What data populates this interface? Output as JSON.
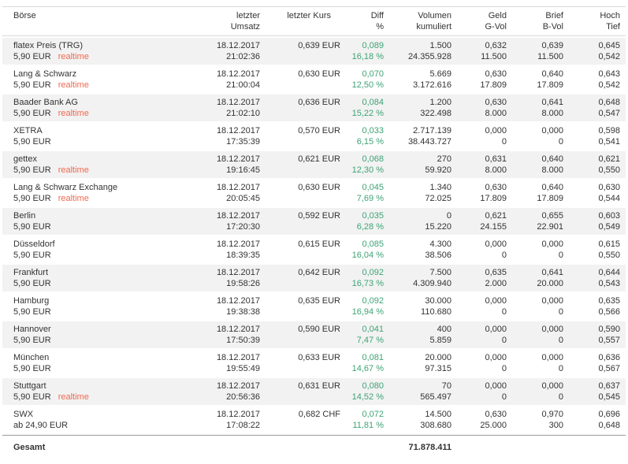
{
  "colors": {
    "diff_green": "#3ea376",
    "realtime_orange": "#ee6a50",
    "row_alt_bg": "#f2f2f2"
  },
  "table": {
    "columns": [
      {
        "l1": "Börse",
        "l2": ""
      },
      {
        "l1": "letzter",
        "l2": "Umsatz"
      },
      {
        "l1": "letzter Kurs",
        "l2": ""
      },
      {
        "l1": "Diff",
        "l2": "%"
      },
      {
        "l1": "Volumen",
        "l2": "kumuliert"
      },
      {
        "l1": "Geld",
        "l2": "G-Vol"
      },
      {
        "l1": "Brief",
        "l2": "B-Vol"
      },
      {
        "l1": "Hoch",
        "l2": "Tief"
      }
    ],
    "rows": [
      {
        "name": "flatex Preis (TRG)",
        "price_note": "5,90 EUR",
        "realtime": "realtime",
        "date": "18.12.2017",
        "time": "21:02:36",
        "kurs": "0,639 EUR",
        "diff": "0,089",
        "diff_pct": "16,18 %",
        "vol": "1.500",
        "vol_kum": "24.355.928",
        "geld": "0,632",
        "g_vol": "11.500",
        "brief": "0,639",
        "b_vol": "11.500",
        "hoch": "0,645",
        "tief": "0,542"
      },
      {
        "name": "Lang & Schwarz",
        "price_note": "5,90 EUR",
        "realtime": "realtime",
        "date": "18.12.2017",
        "time": "21:00:04",
        "kurs": "0,630 EUR",
        "diff": "0,070",
        "diff_pct": "12,50 %",
        "vol": "5.669",
        "vol_kum": "3.172.616",
        "geld": "0,630",
        "g_vol": "17.809",
        "brief": "0,640",
        "b_vol": "17.809",
        "hoch": "0,643",
        "tief": "0,542"
      },
      {
        "name": "Baader Bank AG",
        "price_note": "5,90 EUR",
        "realtime": "realtime",
        "date": "18.12.2017",
        "time": "21:02:10",
        "kurs": "0,636 EUR",
        "diff": "0,084",
        "diff_pct": "15,22 %",
        "vol": "1.200",
        "vol_kum": "322.498",
        "geld": "0,630",
        "g_vol": "8.000",
        "brief": "0,641",
        "b_vol": "8.000",
        "hoch": "0,648",
        "tief": "0,547"
      },
      {
        "name": "XETRA",
        "price_note": "5,90 EUR",
        "realtime": "",
        "date": "18.12.2017",
        "time": "17:35:39",
        "kurs": "0,570 EUR",
        "diff": "0,033",
        "diff_pct": "6,15 %",
        "vol": "2.717.139",
        "vol_kum": "38.443.727",
        "geld": "0,000",
        "g_vol": "0",
        "brief": "0,000",
        "b_vol": "0",
        "hoch": "0,598",
        "tief": "0,541"
      },
      {
        "name": "gettex",
        "price_note": "5,90 EUR",
        "realtime": "realtime",
        "date": "18.12.2017",
        "time": "19:16:45",
        "kurs": "0,621 EUR",
        "diff": "0,068",
        "diff_pct": "12,30 %",
        "vol": "270",
        "vol_kum": "59.920",
        "geld": "0,631",
        "g_vol": "8.000",
        "brief": "0,640",
        "b_vol": "8.000",
        "hoch": "0,621",
        "tief": "0,550"
      },
      {
        "name": "Lang & Schwarz Exchange",
        "price_note": "5,90 EUR",
        "realtime": "realtime",
        "date": "18.12.2017",
        "time": "20:05:45",
        "kurs": "0,630 EUR",
        "diff": "0,045",
        "diff_pct": "7,69 %",
        "vol": "1.340",
        "vol_kum": "72.025",
        "geld": "0,630",
        "g_vol": "17.809",
        "brief": "0,640",
        "b_vol": "17.809",
        "hoch": "0,630",
        "tief": "0,544"
      },
      {
        "name": "Berlin",
        "price_note": "5,90 EUR",
        "realtime": "",
        "date": "18.12.2017",
        "time": "17:20:30",
        "kurs": "0,592 EUR",
        "diff": "0,035",
        "diff_pct": "6,28 %",
        "vol": "0",
        "vol_kum": "15.220",
        "geld": "0,621",
        "g_vol": "24.155",
        "brief": "0,655",
        "b_vol": "22.901",
        "hoch": "0,603",
        "tief": "0,549"
      },
      {
        "name": "Düsseldorf",
        "price_note": "5,90 EUR",
        "realtime": "",
        "date": "18.12.2017",
        "time": "18:39:35",
        "kurs": "0,615 EUR",
        "diff": "0,085",
        "diff_pct": "16,04 %",
        "vol": "4.300",
        "vol_kum": "38.506",
        "geld": "0,000",
        "g_vol": "0",
        "brief": "0,000",
        "b_vol": "0",
        "hoch": "0,615",
        "tief": "0,550"
      },
      {
        "name": "Frankfurt",
        "price_note": "5,90 EUR",
        "realtime": "",
        "date": "18.12.2017",
        "time": "19:58:26",
        "kurs": "0,642 EUR",
        "diff": "0,092",
        "diff_pct": "16,73 %",
        "vol": "7.500",
        "vol_kum": "4.309.940",
        "geld": "0,635",
        "g_vol": "2.000",
        "brief": "0,641",
        "b_vol": "20.000",
        "hoch": "0,644",
        "tief": "0,543"
      },
      {
        "name": "Hamburg",
        "price_note": "5,90 EUR",
        "realtime": "",
        "date": "18.12.2017",
        "time": "19:38:38",
        "kurs": "0,635 EUR",
        "diff": "0,092",
        "diff_pct": "16,94 %",
        "vol": "30.000",
        "vol_kum": "110.680",
        "geld": "0,000",
        "g_vol": "0",
        "brief": "0,000",
        "b_vol": "0",
        "hoch": "0,635",
        "tief": "0,566"
      },
      {
        "name": "Hannover",
        "price_note": "5,90 EUR",
        "realtime": "",
        "date": "18.12.2017",
        "time": "17:50:39",
        "kurs": "0,590 EUR",
        "diff": "0,041",
        "diff_pct": "7,47 %",
        "vol": "400",
        "vol_kum": "5.859",
        "geld": "0,000",
        "g_vol": "0",
        "brief": "0,000",
        "b_vol": "0",
        "hoch": "0,590",
        "tief": "0,557"
      },
      {
        "name": "München",
        "price_note": "5,90 EUR",
        "realtime": "",
        "date": "18.12.2017",
        "time": "19:55:49",
        "kurs": "0,633 EUR",
        "diff": "0,081",
        "diff_pct": "14,67 %",
        "vol": "20.000",
        "vol_kum": "97.315",
        "geld": "0,000",
        "g_vol": "0",
        "brief": "0,000",
        "b_vol": "0",
        "hoch": "0,636",
        "tief": "0,567"
      },
      {
        "name": "Stuttgart",
        "price_note": "5,90 EUR",
        "realtime": "realtime",
        "date": "18.12.2017",
        "time": "20:56:36",
        "kurs": "0,631 EUR",
        "diff": "0,080",
        "diff_pct": "14,52 %",
        "vol": "70",
        "vol_kum": "565.497",
        "geld": "0,000",
        "g_vol": "0",
        "brief": "0,000",
        "b_vol": "0",
        "hoch": "0,637",
        "tief": "0,545"
      },
      {
        "name": "SWX",
        "price_note": "ab 24,90 EUR",
        "realtime": "",
        "date": "18.12.2017",
        "time": "17:08:22",
        "kurs": "0,682 CHF",
        "diff": "0,072",
        "diff_pct": "11,81 %",
        "vol": "14.500",
        "vol_kum": "308.680",
        "geld": "0,630",
        "g_vol": "25.000",
        "brief": "0,970",
        "b_vol": "300",
        "hoch": "0,696",
        "tief": "0,648"
      }
    ],
    "footer": {
      "label": "Gesamt",
      "total": "71.878.411"
    }
  }
}
